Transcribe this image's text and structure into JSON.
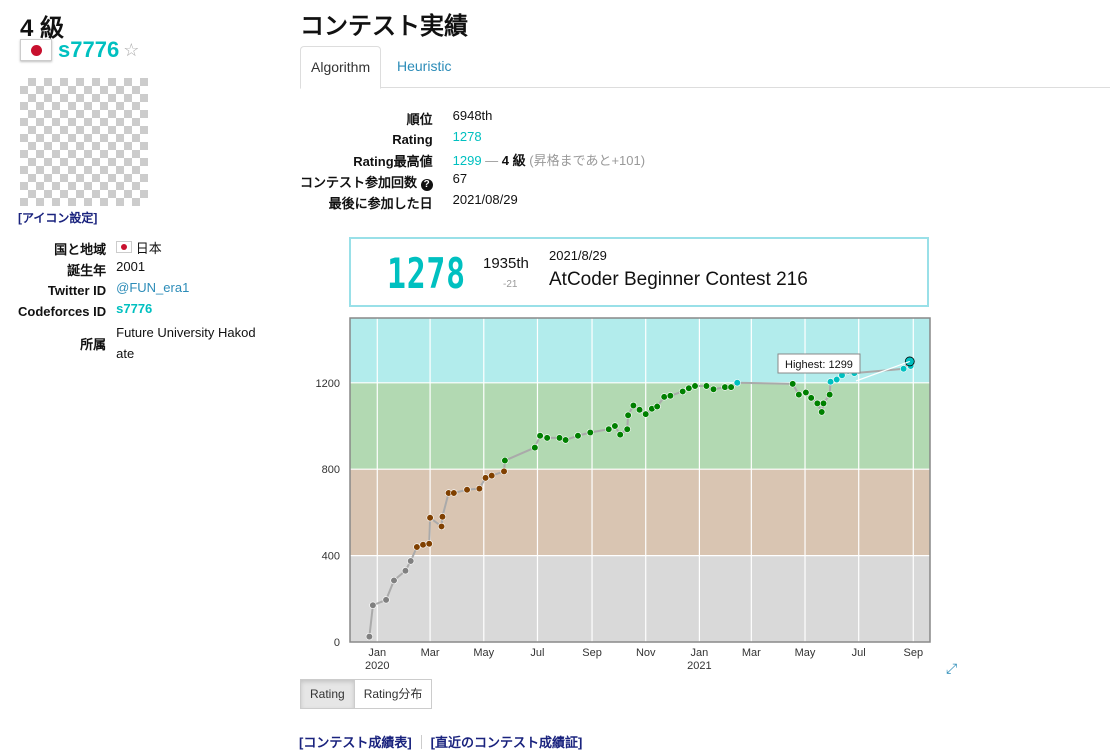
{
  "sidebar": {
    "rank": "4 級",
    "username": "s7776",
    "star": "☆",
    "icon_setting": "[アイコン設定]",
    "profile": [
      {
        "label": "国と地域",
        "value": "日本",
        "flag": true
      },
      {
        "label": "誕生年",
        "value": "2001"
      },
      {
        "label": "Twitter ID",
        "value": "@FUN_era1",
        "link": true
      },
      {
        "label": "Codeforces ID",
        "value": "s7776",
        "link": true
      },
      {
        "label": "所属",
        "value": "Future University Hakodate"
      }
    ]
  },
  "main": {
    "title": "コンテスト実績",
    "tabs": [
      "Algorithm",
      "Heuristic"
    ],
    "stats": {
      "rank_label": "順位",
      "rank_value": "6948th",
      "rating_label": "Rating",
      "rating_value": "1278",
      "max_label": "Rating最高値",
      "max_value": "1299",
      "max_dash": " — ",
      "max_class": "4 級",
      "max_note": "(昇格まであと+101)",
      "count_label": "コンテスト参加回数",
      "count_value": "67",
      "last_label": "最後に参加した日",
      "last_value": "2021/08/29"
    },
    "card": {
      "rating": "1278",
      "rank": "1935th",
      "diff": "-21",
      "date": "2021/8/29",
      "contest": "AtCoder Beginner Contest 216"
    },
    "buttons": [
      "Rating",
      "Rating分布"
    ],
    "links": [
      "[コンテスト成績表]",
      "[直近のコンテスト成績証]"
    ]
  },
  "chart_data": {
    "type": "line",
    "title": "",
    "xlabel": "",
    "ylabel": "",
    "x_range": [
      "2019-12-01",
      "2021-09-20"
    ],
    "ylim": [
      0,
      1500
    ],
    "y_ticks": [
      0,
      400,
      800,
      1200
    ],
    "x_ticks": [
      {
        "date": "2020-01-01",
        "label": "Jan",
        "sub": "2020"
      },
      {
        "date": "2020-03-01",
        "label": "Mar"
      },
      {
        "date": "2020-05-01",
        "label": "May"
      },
      {
        "date": "2020-07-01",
        "label": "Jul"
      },
      {
        "date": "2020-09-01",
        "label": "Sep"
      },
      {
        "date": "2020-11-01",
        "label": "Nov"
      },
      {
        "date": "2021-01-01",
        "label": "Jan",
        "sub": "2021"
      },
      {
        "date": "2021-03-01",
        "label": "Mar"
      },
      {
        "date": "2021-05-01",
        "label": "May"
      },
      {
        "date": "2021-07-01",
        "label": "Jul"
      },
      {
        "date": "2021-09-01",
        "label": "Sep"
      }
    ],
    "bands": [
      {
        "from": 0,
        "to": 400,
        "color": "#d9d9d9",
        "point": "#808080"
      },
      {
        "from": 400,
        "to": 800,
        "color": "#d9c5b2",
        "point": "#804000"
      },
      {
        "from": 800,
        "to": 1200,
        "color": "#b2d9b2",
        "point": "#008000"
      },
      {
        "from": 1200,
        "to": 1500,
        "color": "#b2ecec",
        "point": "#00c0c0"
      }
    ],
    "series": [
      {
        "points": [
          [
            "2019-12-23",
            25
          ],
          [
            "2019-12-27",
            170
          ],
          [
            "2020-01-11",
            195
          ],
          [
            "2020-01-20",
            285
          ],
          [
            "2020-02-02",
            330
          ],
          [
            "2020-02-08",
            375
          ],
          [
            "2020-02-15",
            440
          ],
          [
            "2020-02-22",
            450
          ],
          [
            "2020-02-29",
            455
          ],
          [
            "2020-03-01",
            575
          ],
          [
            "2020-03-14",
            535
          ],
          [
            "2020-03-15",
            580
          ],
          [
            "2020-03-22",
            690
          ],
          [
            "2020-03-28",
            690
          ],
          [
            "2020-04-12",
            705
          ],
          [
            "2020-04-26",
            710
          ],
          [
            "2020-05-03",
            760
          ],
          [
            "2020-05-10",
            770
          ],
          [
            "2020-05-24",
            790
          ],
          [
            "2020-05-25",
            840
          ],
          [
            "2020-06-28",
            900
          ],
          [
            "2020-07-04",
            955
          ],
          [
            "2020-07-12",
            945
          ],
          [
            "2020-07-26",
            945
          ],
          [
            "2020-08-02",
            935
          ],
          [
            "2020-08-16",
            955
          ],
          [
            "2020-08-30",
            970
          ],
          [
            "2020-09-20",
            985
          ],
          [
            "2020-09-27",
            1000
          ],
          [
            "2020-10-03",
            960
          ],
          [
            "2020-10-11",
            985
          ],
          [
            "2020-10-12",
            1050
          ],
          [
            "2020-10-18",
            1095
          ],
          [
            "2020-10-25",
            1075
          ],
          [
            "2020-11-01",
            1055
          ],
          [
            "2020-11-08",
            1080
          ],
          [
            "2020-11-14",
            1090
          ],
          [
            "2020-11-22",
            1135
          ],
          [
            "2020-11-29",
            1140
          ],
          [
            "2020-12-13",
            1160
          ],
          [
            "2020-12-20",
            1175
          ],
          [
            "2020-12-27",
            1185
          ],
          [
            "2021-01-09",
            1185
          ],
          [
            "2021-01-17",
            1170
          ],
          [
            "2021-01-30",
            1180
          ],
          [
            "2021-02-06",
            1180
          ],
          [
            "2021-02-13",
            1200
          ],
          [
            "2021-04-17",
            1195
          ],
          [
            "2021-04-24",
            1145
          ],
          [
            "2021-05-02",
            1155
          ],
          [
            "2021-05-08",
            1130
          ],
          [
            "2021-05-15",
            1105
          ],
          [
            "2021-05-20",
            1065
          ],
          [
            "2021-05-22",
            1105
          ],
          [
            "2021-05-29",
            1145
          ],
          [
            "2021-05-30",
            1205
          ],
          [
            "2021-06-06",
            1215
          ],
          [
            "2021-06-12",
            1235
          ],
          [
            "2021-06-13",
            1270
          ],
          [
            "2021-06-19",
            1255
          ],
          [
            "2021-06-26",
            1245
          ],
          [
            "2021-08-21",
            1265
          ],
          [
            "2021-08-28",
            1299
          ],
          [
            "2021-08-29",
            1278
          ]
        ]
      }
    ],
    "highest": {
      "label": "Highest: 1299",
      "date": "2021-08-28",
      "value": 1299
    },
    "grid": true
  }
}
